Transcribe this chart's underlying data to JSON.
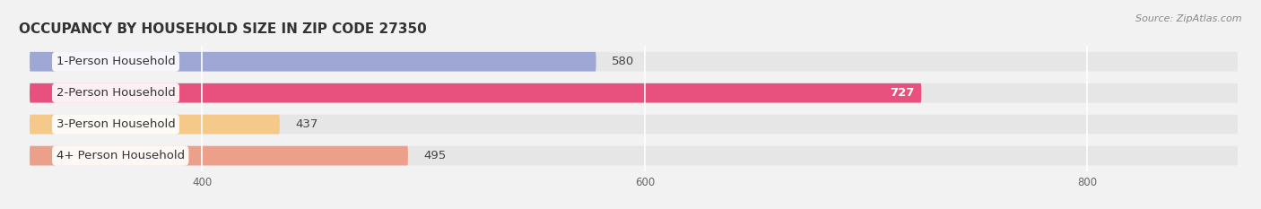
{
  "title": "OCCUPANCY BY HOUSEHOLD SIZE IN ZIP CODE 27350",
  "source": "Source: ZipAtlas.com",
  "categories": [
    "1-Person Household",
    "2-Person Household",
    "3-Person Household",
    "4+ Person Household"
  ],
  "values": [
    580,
    727,
    437,
    495
  ],
  "bar_colors": [
    "#9fa8d4",
    "#e8517e",
    "#f5c98a",
    "#eca08a"
  ],
  "label_colors": [
    "#333333",
    "#ffffff",
    "#333333",
    "#333333"
  ],
  "xlim_min": 320,
  "xlim_max": 870,
  "xticks": [
    400,
    600,
    800
  ],
  "bar_height": 0.62,
  "bg_color": "#f2f2f2",
  "row_bg_color": "#e6e6e6",
  "title_fontsize": 11,
  "source_fontsize": 8,
  "label_fontsize": 9.5,
  "value_fontsize": 9.5
}
